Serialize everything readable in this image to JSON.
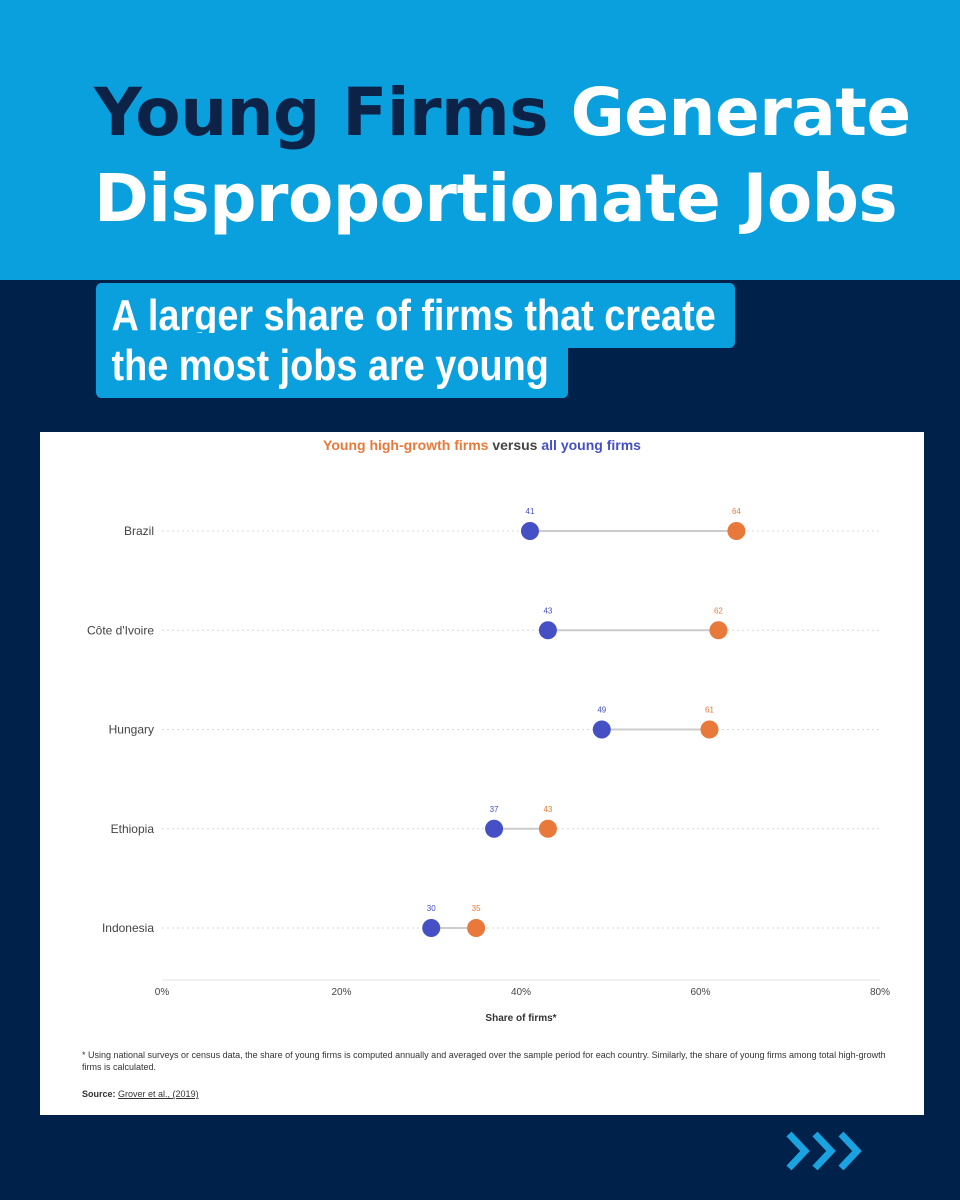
{
  "title": {
    "part1": "Young Firms",
    "part2": " Generate",
    "line2": "Disproportionate Jobs"
  },
  "subtitle": {
    "line1": "A larger share of firms that create",
    "line2": "the most jobs are young"
  },
  "legend": {
    "series1": "Young high-growth firms",
    "connector": " versus ",
    "series2": "all young firms"
  },
  "footnote": "* Using national surveys or census data, the share of young firms is computed annually and averaged over the sample period for each country. Similarly, the share of young firms among total high-growth firms is calculated.",
  "source": {
    "label": "Source:",
    "text": "Grover et al., (2019)"
  },
  "colors": {
    "header_bg": "#0aa0de",
    "page_bg": "#00224a",
    "title_dark": "#0d2247",
    "orange": "#e8793a",
    "blue": "#4450c4"
  },
  "icons": {
    "next": "triple-chevron-right-icon"
  },
  "chart_data": {
    "type": "dumbbell",
    "xlabel": "Share of firms*",
    "xlim": [
      0,
      80
    ],
    "xticks": [
      0,
      20,
      40,
      60,
      80
    ],
    "xtick_labels": [
      "0%",
      "20%",
      "40%",
      "60%",
      "80%"
    ],
    "categories": [
      "Brazil",
      "Côte d'Ivoire",
      "Hungary",
      "Ethiopia",
      "Indonesia"
    ],
    "series": [
      {
        "name": "Young high-growth firms",
        "color": "#e8793a",
        "values": [
          64,
          62,
          61,
          43,
          35
        ]
      },
      {
        "name": "all young firms",
        "color": "#4450c4",
        "values": [
          41,
          43,
          49,
          37,
          30
        ]
      }
    ]
  }
}
